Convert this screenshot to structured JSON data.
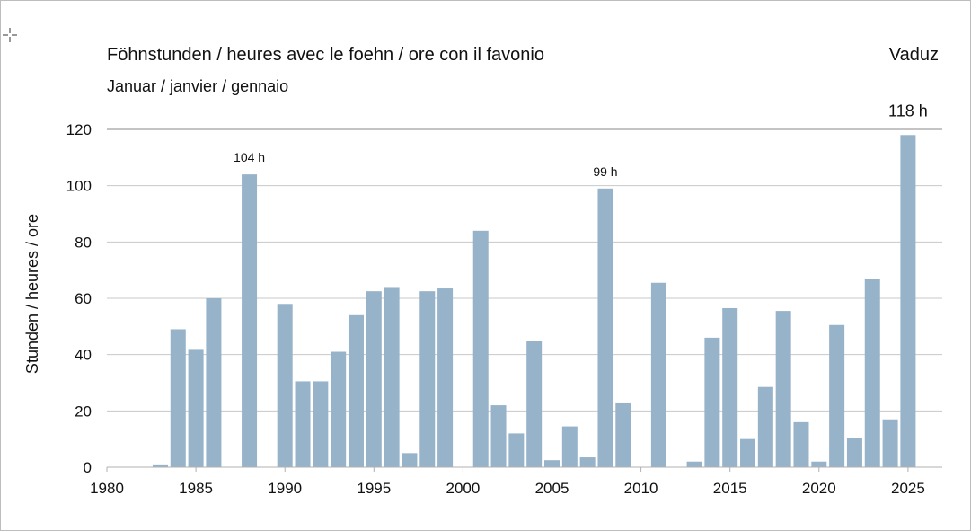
{
  "header": {
    "title": "Föhnstunden / heures avec le foehn / ore con il favonio",
    "subtitle": "Januar / janvier / gennaio",
    "station": "Vaduz"
  },
  "chart_data": {
    "type": "bar",
    "title": "Föhnstunden / heures avec le foehn / ore con il favonio",
    "subtitle": "Januar / janvier / gennaio",
    "station": "Vaduz",
    "xlabel": "",
    "ylabel": "Stunden / heures / ore",
    "xlim": [
      1980,
      2027
    ],
    "ylim": [
      0,
      120
    ],
    "xticks": [
      1980,
      1985,
      1990,
      1995,
      2000,
      2005,
      2010,
      2015,
      2020,
      2025
    ],
    "yticks": [
      0,
      20,
      40,
      60,
      80,
      100,
      120
    ],
    "grid": true,
    "bar_color": "#97b3ca",
    "years": [
      1983,
      1984,
      1985,
      1986,
      1988,
      1990,
      1991,
      1992,
      1993,
      1994,
      1995,
      1996,
      1997,
      1998,
      1999,
      2001,
      2002,
      2003,
      2004,
      2005,
      2006,
      2007,
      2008,
      2009,
      2011,
      2013,
      2014,
      2015,
      2016,
      2017,
      2018,
      2019,
      2020,
      2021,
      2022,
      2023,
      2024,
      2025
    ],
    "values": [
      1,
      49,
      42,
      60,
      104,
      58,
      30.5,
      30.5,
      41,
      54,
      62.5,
      64,
      5,
      62.5,
      63.5,
      84,
      22,
      12,
      45,
      2.5,
      14.5,
      3.5,
      99,
      23,
      65.5,
      2,
      46,
      56.5,
      10,
      28.5,
      55.5,
      16,
      2,
      50.5,
      10.5,
      67,
      17,
      118
    ],
    "annotations": [
      {
        "year": 1988,
        "text": "104 h"
      },
      {
        "year": 2008,
        "text": "99 h"
      },
      {
        "year": 2025,
        "text": "118 h"
      }
    ]
  }
}
